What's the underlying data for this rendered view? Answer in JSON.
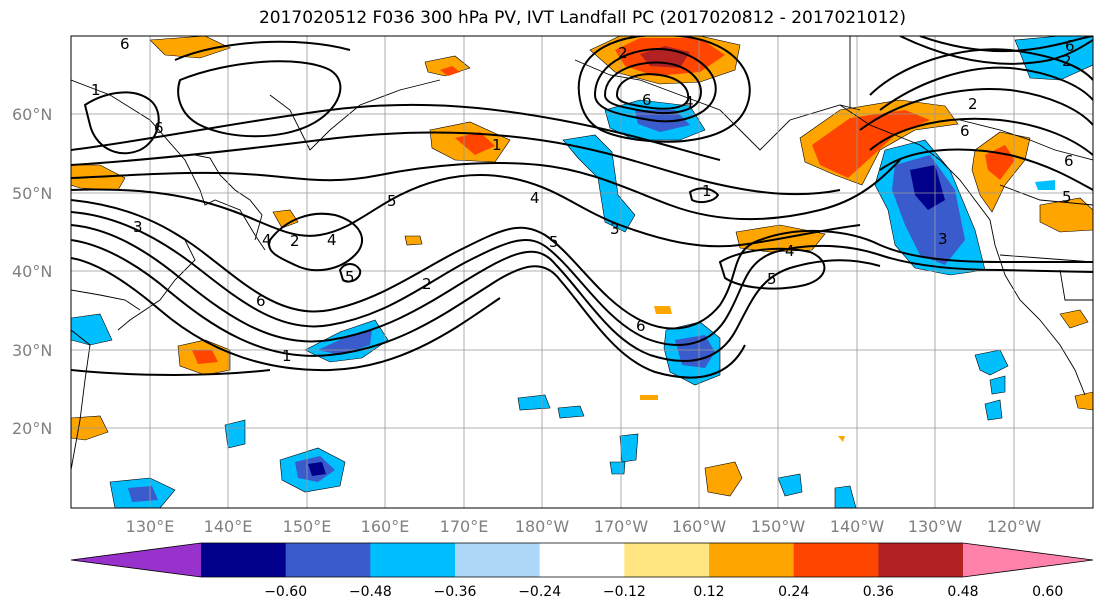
{
  "title": "2017020512 F036 300 hPa PV, IVT Landfall PC (2017020812 - 2017021012)",
  "lat_labels": [
    "60°N",
    "50°N",
    "40°N",
    "30°N",
    "20°N"
  ],
  "lon_labels": [
    "130°E",
    "140°E",
    "150°E",
    "160°E",
    "170°E",
    "180°W",
    "170°W",
    "160°W",
    "150°W",
    "140°W",
    "130°W",
    "120°W"
  ],
  "colorbar": {
    "ticks": [
      "−0.60",
      "−0.48",
      "−0.36",
      "−0.24",
      "−0.12",
      "0.12",
      "0.24",
      "0.36",
      "0.48",
      "0.60"
    ],
    "colors": [
      "#9932cc",
      "#00008b",
      "#3a5bcb",
      "#00bfff",
      "#add8f7",
      "#ffffff",
      "#ffe680",
      "#ffa500",
      "#ff4500",
      "#b22222",
      "#ff82ab"
    ]
  },
  "contour_labels": [
    "6",
    "4",
    "6",
    "2",
    "1",
    "6",
    "5",
    "4",
    "5",
    "2",
    "3",
    "4",
    "1",
    "6",
    "1",
    "6",
    "1",
    "2",
    "5",
    "4",
    "5",
    "6",
    "4",
    "3",
    "6",
    "2",
    "3",
    "5",
    "2",
    "6",
    "2"
  ],
  "map": {
    "projection": "equidistant-cylindrical",
    "lon_range": [
      "120°E",
      "115°W"
    ],
    "lat_range": [
      10,
      70
    ],
    "grid": true
  }
}
